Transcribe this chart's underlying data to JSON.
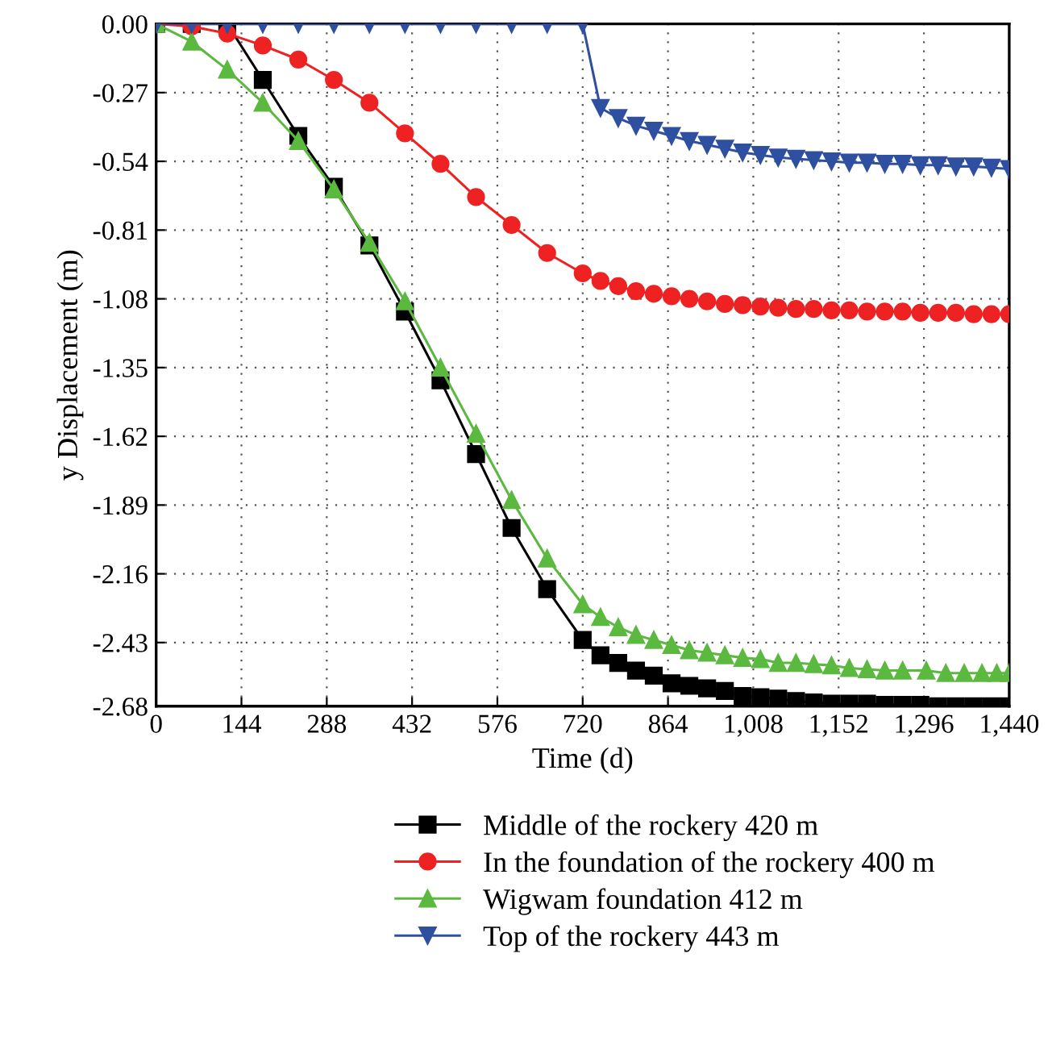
{
  "chart_data": {
    "type": "line",
    "xlabel": "Time (d)",
    "ylabel": "y Displacement (m)",
    "xlim": [
      0,
      1440
    ],
    "ylim": [
      -2.68,
      0
    ],
    "xticks": [
      0,
      144,
      288,
      432,
      576,
      720,
      864,
      {
        "value": 1008,
        "label": "1,008"
      },
      {
        "value": 1152,
        "label": "1,152"
      },
      {
        "value": 1296,
        "label": "1,296"
      },
      {
        "value": 1440,
        "label": "1,440"
      }
    ],
    "yticks": [
      {
        "value": 0,
        "label": "0.00"
      },
      {
        "value": -0.27,
        "label": "-0.27"
      },
      {
        "value": -0.54,
        "label": "-0.54"
      },
      {
        "value": -0.81,
        "label": "-0.81"
      },
      {
        "value": -1.08,
        "label": "-1.08"
      },
      {
        "value": -1.35,
        "label": "-1.35"
      },
      {
        "value": -1.62,
        "label": "-1.62"
      },
      {
        "value": -1.89,
        "label": "-1.89"
      },
      {
        "value": -2.16,
        "label": "-2.16"
      },
      {
        "value": -2.43,
        "label": "-2.43"
      },
      {
        "value": -2.68,
        "label": "-2.68"
      }
    ],
    "grid": true,
    "legend": "bottom",
    "line_style": "solid",
    "series": [
      {
        "name": "Middle of the rockery 420 m",
        "color": "#000000",
        "marker": "square",
        "x": [
          0,
          60,
          120,
          180,
          240,
          300,
          360,
          420,
          480,
          540,
          600,
          660,
          720,
          750,
          780,
          810,
          840,
          870,
          900,
          930,
          960,
          990,
          1020,
          1050,
          1080,
          1110,
          1140,
          1170,
          1200,
          1230,
          1260,
          1290,
          1320,
          1350,
          1380,
          1410,
          1440
        ],
        "values": [
          0,
          0,
          0,
          -0.22,
          -0.44,
          -0.64,
          -0.87,
          -1.13,
          -1.4,
          -1.69,
          -1.98,
          -2.22,
          -2.42,
          -2.48,
          -2.51,
          -2.54,
          -2.56,
          -2.59,
          -2.6,
          -2.61,
          -2.62,
          -2.64,
          -2.645,
          -2.65,
          -2.66,
          -2.665,
          -2.67,
          -2.67,
          -2.67,
          -2.675,
          -2.675,
          -2.675,
          -2.68,
          -2.68,
          -2.68,
          -2.68,
          -2.68
        ]
      },
      {
        "name": "In the foundation of the rockery 400 m",
        "color": "#ee2222",
        "marker": "circle",
        "x": [
          0,
          60,
          120,
          180,
          240,
          300,
          360,
          420,
          480,
          540,
          600,
          660,
          720,
          750,
          780,
          810,
          840,
          870,
          900,
          930,
          960,
          990,
          1020,
          1050,
          1080,
          1110,
          1140,
          1170,
          1200,
          1230,
          1260,
          1290,
          1320,
          1350,
          1380,
          1410,
          1440
        ],
        "values": [
          0,
          -0.01,
          -0.038,
          -0.085,
          -0.14,
          -0.22,
          -0.31,
          -0.43,
          -0.55,
          -0.68,
          -0.79,
          -0.9,
          -0.98,
          -1.01,
          -1.03,
          -1.05,
          -1.06,
          -1.07,
          -1.08,
          -1.09,
          -1.1,
          -1.105,
          -1.11,
          -1.115,
          -1.12,
          -1.12,
          -1.125,
          -1.125,
          -1.13,
          -1.13,
          -1.13,
          -1.135,
          -1.135,
          -1.135,
          -1.14,
          -1.14,
          -1.14
        ]
      },
      {
        "name": "Wigwam foundation 412 m",
        "color": "#5cb940",
        "marker": "triangle",
        "x": [
          0,
          60,
          120,
          180,
          240,
          300,
          360,
          420,
          480,
          540,
          600,
          660,
          720,
          750,
          780,
          810,
          840,
          870,
          900,
          930,
          960,
          990,
          1020,
          1050,
          1080,
          1110,
          1140,
          1170,
          1200,
          1230,
          1260,
          1300,
          1333,
          1364,
          1394,
          1419,
          1440
        ],
        "values": [
          0,
          -0.07,
          -0.18,
          -0.31,
          -0.46,
          -0.65,
          -0.86,
          -1.09,
          -1.35,
          -1.61,
          -1.87,
          -2.1,
          -2.28,
          -2.33,
          -2.37,
          -2.4,
          -2.42,
          -2.44,
          -2.46,
          -2.47,
          -2.48,
          -2.49,
          -2.495,
          -2.51,
          -2.51,
          -2.515,
          -2.52,
          -2.53,
          -2.535,
          -2.54,
          -2.54,
          -2.54,
          -2.55,
          -2.55,
          -2.55,
          -2.55,
          -2.55
        ]
      },
      {
        "name": "Top of the rockery 443 m",
        "color": "#2f4fa0",
        "marker": "triangle_down",
        "x": [
          0,
          60,
          120,
          180,
          240,
          300,
          360,
          420,
          480,
          540,
          600,
          660,
          720,
          750,
          780,
          810,
          840,
          870,
          900,
          930,
          960,
          990,
          1020,
          1050,
          1080,
          1110,
          1140,
          1170,
          1200,
          1230,
          1260,
          1290,
          1320,
          1350,
          1380,
          1410,
          1440
        ],
        "values": [
          0,
          0,
          0,
          0,
          0,
          0,
          0,
          0,
          0,
          0,
          0,
          0,
          0,
          -0.33,
          -0.37,
          -0.4,
          -0.42,
          -0.44,
          -0.46,
          -0.475,
          -0.49,
          -0.505,
          -0.515,
          -0.525,
          -0.53,
          -0.535,
          -0.54,
          -0.545,
          -0.545,
          -0.55,
          -0.55,
          -0.555,
          -0.555,
          -0.56,
          -0.56,
          -0.565,
          -0.57
        ]
      }
    ]
  }
}
